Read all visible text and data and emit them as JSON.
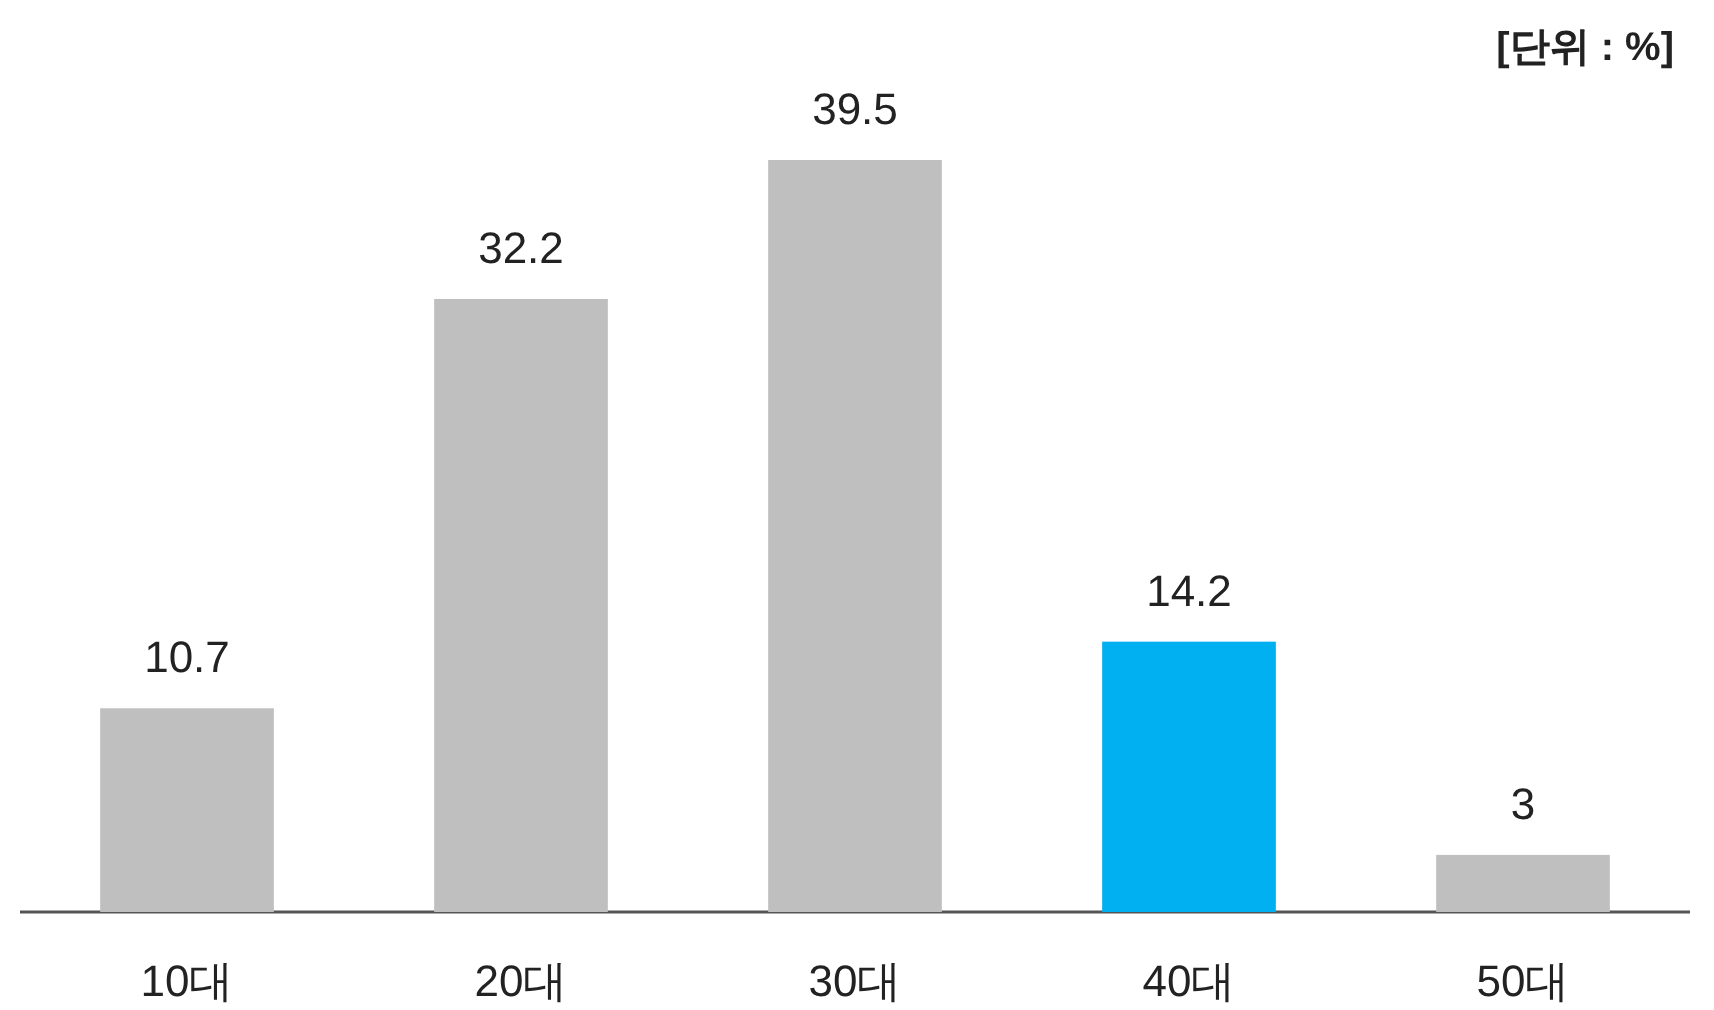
{
  "chart_data": {
    "type": "bar",
    "categories": [
      "10대",
      "20대",
      "30대",
      "40대",
      "50대"
    ],
    "values": [
      10.7,
      32.2,
      39.5,
      14.2,
      3
    ],
    "colors": [
      "#bfbfbf",
      "#bfbfbf",
      "#bfbfbf",
      "#00b0f0",
      "#bfbfbf"
    ],
    "data_labels": true,
    "annotations": [
      "[단위 : %]"
    ]
  }
}
